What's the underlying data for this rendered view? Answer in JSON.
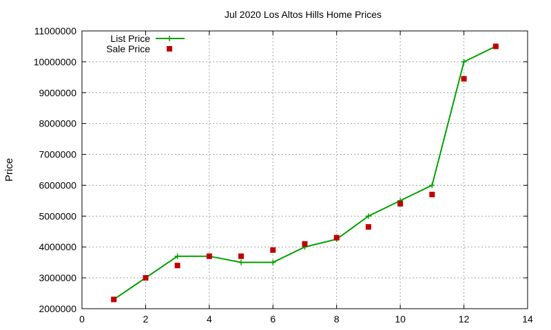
{
  "chart_data": {
    "type": "line",
    "title": "Jul 2020 Los Altos Hills Home Prices",
    "xlabel": "",
    "ylabel": "Price",
    "xlim": [
      0,
      14
    ],
    "ylim": [
      2000000,
      11000000
    ],
    "x_ticks": [
      "0",
      "2",
      "4",
      "6",
      "8",
      "10",
      "12",
      "14"
    ],
    "y_ticks": [
      "2000000",
      "3000000",
      "4000000",
      "5000000",
      "6000000",
      "7000000",
      "8000000",
      "9000000",
      "10000000",
      "11000000"
    ],
    "grid": true,
    "legend_position": "top-left",
    "series": [
      {
        "name": "List Price",
        "style": "line-with-plus-markers",
        "color": "#00a000",
        "x": [
          1,
          2,
          3,
          4,
          5,
          6,
          7,
          8,
          9,
          10,
          11,
          12,
          13
        ],
        "y": [
          2300000,
          3000000,
          3700000,
          3700000,
          3500000,
          3500000,
          4000000,
          4250000,
          5000000,
          5500000,
          6000000,
          10000000,
          10500000
        ]
      },
      {
        "name": "Sale Price",
        "style": "square-markers",
        "color": "#c00000",
        "x": [
          1,
          2,
          3,
          4,
          5,
          6,
          7,
          8,
          9,
          10,
          11,
          12,
          13
        ],
        "y": [
          2300000,
          3000000,
          3400000,
          3700000,
          3700000,
          3900000,
          4100000,
          4300000,
          4650000,
          5400000,
          5700000,
          9450000,
          10500000
        ]
      }
    ]
  }
}
